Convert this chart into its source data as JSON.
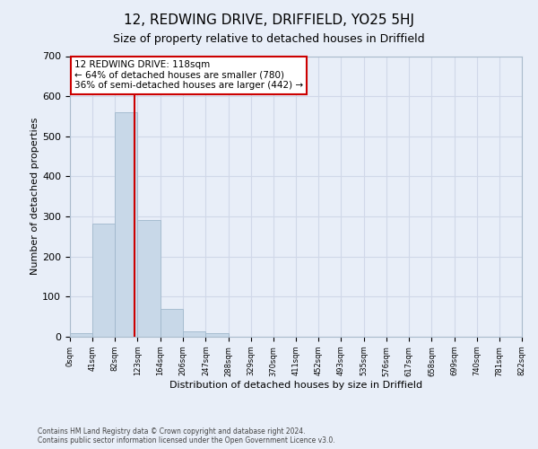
{
  "title": "12, REDWING DRIVE, DRIFFIELD, YO25 5HJ",
  "subtitle": "Size of property relative to detached houses in Driffield",
  "xlabel": "Distribution of detached houses by size in Driffield",
  "ylabel": "Number of detached properties",
  "footer_line1": "Contains HM Land Registry data © Crown copyright and database right 2024.",
  "footer_line2": "Contains public sector information licensed under the Open Government Licence v3.0.",
  "bin_edges": [
    0,
    41,
    82,
    123,
    164,
    206,
    247,
    288,
    329,
    370,
    411,
    452,
    493,
    535,
    576,
    617,
    658,
    699,
    740,
    781,
    822
  ],
  "bar_heights": [
    8,
    282,
    560,
    292,
    70,
    14,
    10,
    0,
    0,
    0,
    0,
    0,
    0,
    0,
    0,
    0,
    0,
    0,
    0,
    0
  ],
  "bar_color": "#c8d8e8",
  "bar_edge_color": "#a0b8cc",
  "grid_color": "#d0d8e8",
  "background_color": "#e8eef8",
  "red_line_x": 118,
  "annotation_text": "12 REDWING DRIVE: 118sqm\n← 64% of detached houses are smaller (780)\n36% of semi-detached houses are larger (442) →",
  "annotation_box_color": "#ffffff",
  "annotation_box_edge_color": "#cc0000",
  "ylim": [
    0,
    700
  ],
  "yticks": [
    0,
    100,
    200,
    300,
    400,
    500,
    600,
    700
  ]
}
